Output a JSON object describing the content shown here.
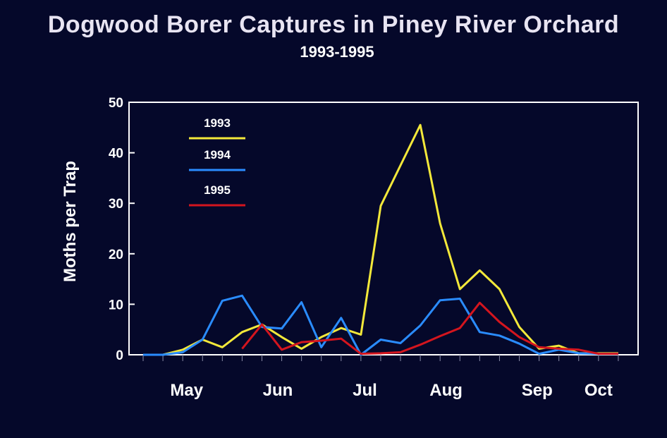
{
  "chart_data": {
    "type": "line",
    "title": "Dogwood Borer Captures in Piney River Orchard",
    "subtitle": "1993-1995",
    "ylabel": "Moths per Trap",
    "xlabel": "",
    "ylim": [
      0,
      50
    ],
    "yticks": [
      0,
      10,
      20,
      30,
      40,
      50
    ],
    "months": [
      "May",
      "Jun",
      "Jul",
      "Aug",
      "Sep",
      "Oct"
    ],
    "grid": false,
    "legend_position": "top-left",
    "series": [
      {
        "name": "1993",
        "color": "#f3e83a",
        "x": [
          0,
          1,
          2,
          3,
          4,
          5,
          6,
          7,
          8,
          9,
          10,
          11,
          12,
          13,
          14,
          15,
          16,
          17,
          18,
          19,
          20,
          21,
          22,
          23,
          24
        ],
        "values": [
          0,
          0,
          1,
          3,
          1.5,
          4.5,
          6,
          3.5,
          1.2,
          3.5,
          5.3,
          4,
          29.5,
          37.5,
          45.5,
          26,
          13,
          16.7,
          13,
          5.5,
          1.2,
          1.8,
          0.3,
          0.3,
          0.3
        ]
      },
      {
        "name": "1994",
        "color": "#2a8cff",
        "x": [
          0,
          1,
          2,
          3,
          4,
          5,
          6,
          7,
          8,
          9,
          10,
          11,
          12,
          13,
          14,
          15,
          16,
          17,
          18,
          19,
          20,
          21,
          22,
          23,
          24
        ],
        "values": [
          0,
          0,
          0.5,
          3,
          10.7,
          11.7,
          5.5,
          5.2,
          10.4,
          1.5,
          7.3,
          0,
          3,
          2.3,
          5.8,
          10.8,
          11.1,
          4.5,
          3.8,
          2.2,
          0.2,
          1,
          0.3,
          0.2,
          0.2
        ]
      },
      {
        "name": "1995",
        "color": "#d4151e",
        "x": [
          5,
          6,
          7,
          8,
          9,
          10,
          11,
          12,
          13,
          14,
          15,
          16,
          17,
          18,
          19,
          20,
          21,
          22,
          23,
          24
        ],
        "values": [
          1.2,
          6,
          1,
          2.5,
          2.8,
          3.2,
          0.2,
          0.3,
          0.5,
          2,
          3.7,
          5.3,
          10.3,
          6.5,
          3.5,
          1.5,
          1.2,
          1,
          0.2,
          0.2
        ]
      }
    ]
  }
}
